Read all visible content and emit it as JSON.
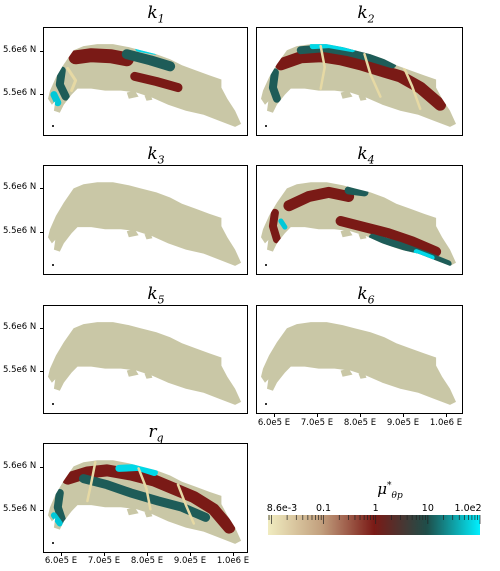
{
  "chart_data": {
    "type": "heatmap",
    "panels": [
      {
        "id": "k1",
        "title_main": "k",
        "title_sub": "1",
        "pattern": "mixed"
      },
      {
        "id": "k2",
        "title_main": "k",
        "title_sub": "2",
        "pattern": "mixed"
      },
      {
        "id": "k3",
        "title_main": "k",
        "title_sub": "3",
        "pattern": "uniform"
      },
      {
        "id": "k4",
        "title_main": "k",
        "title_sub": "4",
        "pattern": "mixed"
      },
      {
        "id": "k5",
        "title_main": "k",
        "title_sub": "5",
        "pattern": "uniform"
      },
      {
        "id": "k6",
        "title_main": "k",
        "title_sub": "6",
        "pattern": "uniform"
      },
      {
        "id": "rq",
        "title_main": "r",
        "title_sub": "q",
        "pattern": "mixed"
      }
    ],
    "y_ticks": [
      "5.6e6 N",
      "5.5e6 N"
    ],
    "x_ticks": [
      "6.0e5 E",
      "7.0e5 E",
      "8.0e5 E",
      "9.0e5 E",
      "1.0e6 E"
    ],
    "colorbar": {
      "title_main": "μ",
      "title_sup": "*",
      "title_sub": "θp",
      "scale": "log",
      "tick_labels": [
        "8.6e-3",
        "0.1",
        "1",
        "10",
        "1.0e2"
      ],
      "min": 0.0086,
      "max": 100,
      "colors": [
        "#f0ecc0",
        "#c2a07e",
        "#7a1a16",
        "#1e4e4a",
        "#00f0ff"
      ]
    }
  }
}
